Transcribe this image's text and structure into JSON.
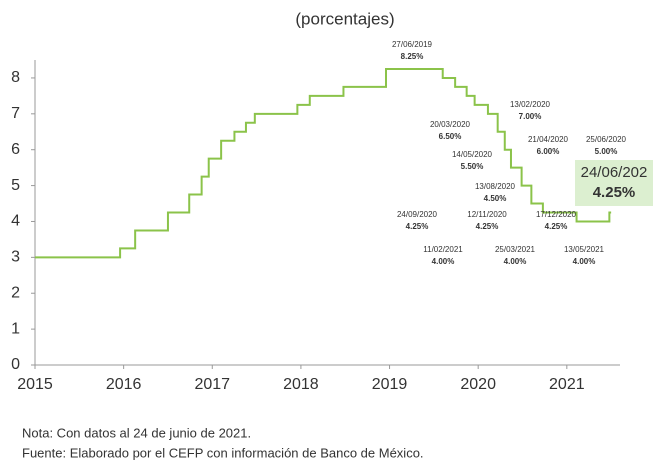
{
  "chart_data": {
    "type": "line",
    "step": "post",
    "title": "(porcentajes)",
    "x": [
      2015,
      2015.96,
      2016.13,
      2016.5,
      2016.74,
      2016.88,
      2016.96,
      2017.1,
      2017.25,
      2017.38,
      2017.48,
      2017.96,
      2018.1,
      2018.48,
      2018.96,
      2019.6,
      2019.74,
      2019.87,
      2019.96,
      2020.11,
      2020.22,
      2020.3,
      2020.37,
      2020.49,
      2020.6,
      2020.73,
      2021.11,
      2021.48,
      2021.5
    ],
    "values": [
      3,
      3.25,
      3.75,
      4.25,
      4.75,
      5.25,
      5.75,
      6.25,
      6.5,
      6.75,
      7,
      7.25,
      7.5,
      7.75,
      8.25,
      8,
      7.75,
      7.5,
      7.25,
      7,
      6.5,
      6,
      5.5,
      5,
      4.5,
      4.25,
      4,
      4.25,
      4.25
    ],
    "color": "#8bc34a",
    "xlim": [
      2015,
      2021.6
    ],
    "xticks": [
      2015,
      2016,
      2017,
      2018,
      2019,
      2020,
      2021
    ],
    "ylim": [
      0,
      8.5
    ],
    "yticks": [
      0,
      1,
      2,
      3,
      4,
      5,
      6,
      7,
      8
    ],
    "annotations": [
      {
        "date": "27/06/2019",
        "rate": "8.25%"
      },
      {
        "date": "13/02/2020",
        "rate": "7.00%"
      },
      {
        "date": "20/03/2020",
        "rate": "6.50%"
      },
      {
        "date": "21/04/2020",
        "rate": "6.00%"
      },
      {
        "date": "25/06/2020",
        "rate": "5.00%"
      },
      {
        "date": "14/05/2020",
        "rate": "5.50%"
      },
      {
        "date": "13/08/2020",
        "rate": "4.50%"
      },
      {
        "date": "24/09/2020",
        "rate": "4.25%"
      },
      {
        "date": "12/11/2020",
        "rate": "4.25%"
      },
      {
        "date": "17/12/2020",
        "rate": "4.25%"
      },
      {
        "date": "11/02/2021",
        "rate": "4.00%"
      },
      {
        "date": "25/03/2021",
        "rate": "4.00%"
      },
      {
        "date": "13/05/2021",
        "rate": "4.00%"
      }
    ],
    "highlight": {
      "date": "24/06/202",
      "rate": "4.25%"
    },
    "notes": [
      "Nota: Con datos al 24 de junio de 2021.",
      "Fuente: Elaborado por el CEFP con información de Banco de México."
    ]
  }
}
